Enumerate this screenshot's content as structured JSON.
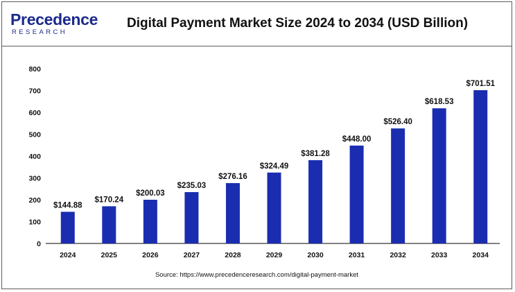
{
  "brand": {
    "name_main": "Precedence",
    "name_sub": "RESEARCH",
    "color": "#1b2a8c"
  },
  "title": "Digital Payment Market Size 2024 to 2034 (USD Billion)",
  "source": "Source: https://www.precedenceresearch.com/digital-payment-market",
  "chart_data": {
    "type": "bar",
    "title": "Digital Payment Market Size 2024 to 2034 (USD Billion)",
    "xlabel": "",
    "ylabel": "",
    "categories": [
      "2024",
      "2025",
      "2026",
      "2027",
      "2028",
      "2029",
      "2030",
      "2031",
      "2032",
      "2033",
      "2034"
    ],
    "values": [
      144.88,
      170.24,
      200.03,
      235.03,
      276.16,
      324.49,
      381.28,
      448.0,
      526.4,
      618.53,
      701.51
    ],
    "data_labels": [
      "$144.88",
      "$170.24",
      "$200.03",
      "$235.03",
      "$276.16",
      "$324.49",
      "$381.28",
      "$448.00",
      "$526.40",
      "$618.53",
      "$701.51"
    ],
    "yticks": [
      "0",
      "100",
      "200",
      "300",
      "400",
      "500",
      "600",
      "700",
      "800"
    ],
    "ylim": [
      0,
      800
    ],
    "grid": false,
    "legend": "none",
    "bar_color": "#1a2db0"
  }
}
